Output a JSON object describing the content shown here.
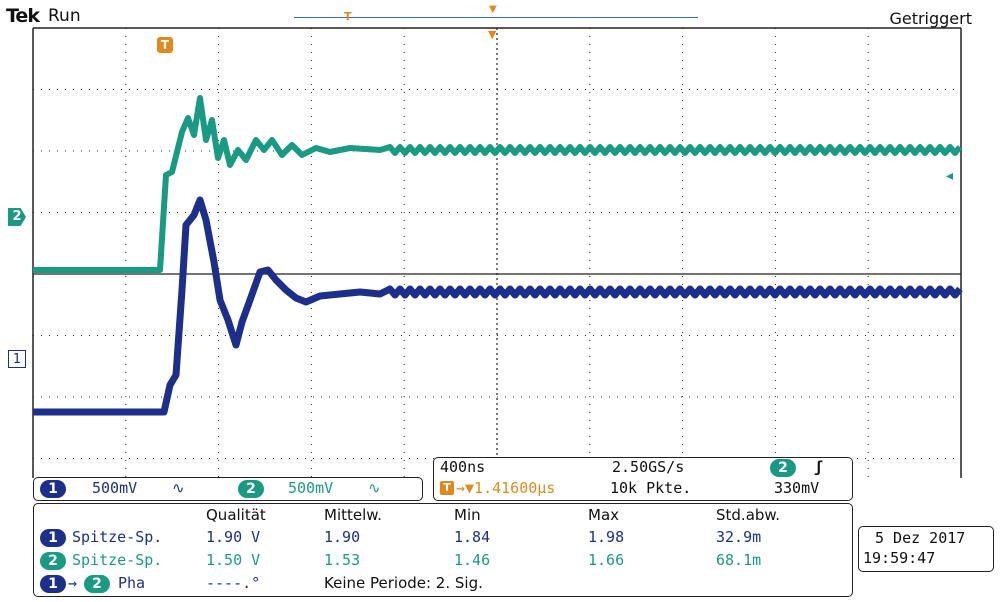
{
  "header": {
    "brand": "Tek",
    "run_state": "Run",
    "trigger_state": "Getriggert"
  },
  "markers": {
    "trigger_position_label": "T",
    "ch2_marker": "2",
    "ch1_marker": "1"
  },
  "channels": {
    "ch1": {
      "number": "1",
      "scale": "500mV",
      "coupling": "∿"
    },
    "ch2": {
      "number": "2",
      "scale": "500mV",
      "coupling": "∿"
    }
  },
  "horizontal": {
    "timebase": "400ns",
    "sample_rate": "2.50GS/s",
    "trigger_source": "2",
    "trigger_slope": "ʃ",
    "trigger_icon": "T",
    "trigger_delay": "→▼1.41600µs",
    "record_length": "10k Pkte.",
    "trigger_level": "330mV"
  },
  "measurements": {
    "headers": [
      "Qualität",
      "Mittelw.",
      "Min",
      "Max",
      "Std.abw."
    ],
    "rows": [
      {
        "source": "1",
        "name": "Spitze-Sp.",
        "value": "1.90 V",
        "mean": "1.90",
        "min": "1.84",
        "max": "1.98",
        "std": "32.9m"
      },
      {
        "source": "2",
        "name": "Spitze-Sp.",
        "value": "1.50 V",
        "mean": "1.53",
        "min": "1.46",
        "max": "1.66",
        "std": "68.1m"
      }
    ],
    "phase": {
      "from": "1",
      "arrow": "→",
      "to": "2",
      "name": "Pha",
      "value": "----.°",
      "note": "Keine Periode: 2. Sig."
    }
  },
  "datetime": {
    "date": "5 Dez 2017",
    "time": "19:59:47"
  },
  "colors": {
    "ch1": "#1d2f8a",
    "ch2": "#1a9a82",
    "trigger": "#e08a1e",
    "grid": "#222222"
  }
}
